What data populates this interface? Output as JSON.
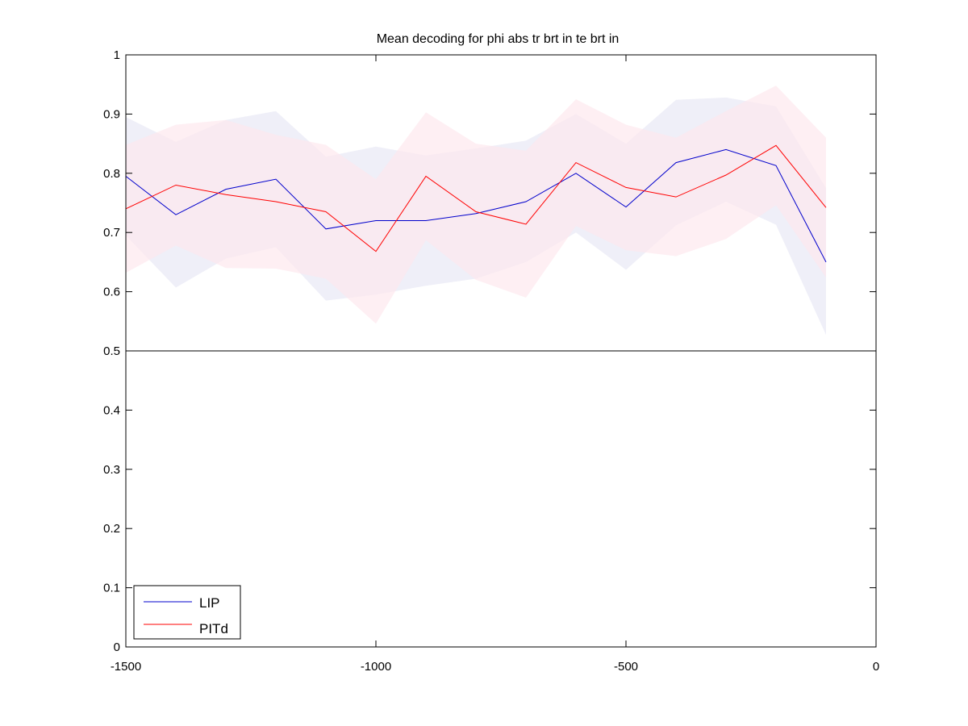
{
  "chart_data": {
    "type": "line",
    "title": "Mean decoding for phi abs tr brt in te brt in",
    "xlabel": "",
    "ylabel": "",
    "xlim": [
      -1500,
      0
    ],
    "ylim": [
      0,
      1
    ],
    "xticks": [
      -1500,
      -1000,
      -500,
      0
    ],
    "yticks": [
      0,
      0.1,
      0.2,
      0.3,
      0.4,
      0.5,
      0.6,
      0.7,
      0.8,
      0.9,
      1
    ],
    "grid": false,
    "legend_position": "bottom-left",
    "reference_line": {
      "y": 0.5,
      "color": "#000000"
    },
    "x": [
      -1500,
      -1400,
      -1300,
      -1200,
      -1100,
      -1000,
      -900,
      -800,
      -700,
      -600,
      -500,
      -400,
      -300,
      -200,
      -100
    ],
    "series": [
      {
        "name": "LIP",
        "color": "#0000cc",
        "band_color": "#e6e6f5",
        "values": [
          0.795,
          0.73,
          0.773,
          0.79,
          0.706,
          0.72,
          0.72,
          0.732,
          0.752,
          0.8,
          0.743,
          0.818,
          0.84,
          0.813,
          0.65
        ],
        "upper": [
          0.895,
          0.853,
          0.89,
          0.905,
          0.828,
          0.845,
          0.83,
          0.842,
          0.855,
          0.9,
          0.85,
          0.924,
          0.928,
          0.913,
          0.775
        ],
        "lower": [
          0.695,
          0.607,
          0.656,
          0.675,
          0.585,
          0.595,
          0.61,
          0.622,
          0.65,
          0.7,
          0.637,
          0.712,
          0.752,
          0.713,
          0.527
        ]
      },
      {
        "name": "PITd",
        "color": "#ff0000",
        "band_color": "#fde6ec",
        "values": [
          0.74,
          0.78,
          0.764,
          0.752,
          0.735,
          0.668,
          0.795,
          0.735,
          0.714,
          0.818,
          0.776,
          0.76,
          0.797,
          0.847,
          0.742
        ],
        "upper": [
          0.848,
          0.882,
          0.89,
          0.865,
          0.848,
          0.79,
          0.903,
          0.85,
          0.838,
          0.925,
          0.882,
          0.86,
          0.905,
          0.948,
          0.86
        ],
        "lower": [
          0.632,
          0.678,
          0.64,
          0.639,
          0.622,
          0.546,
          0.687,
          0.62,
          0.59,
          0.711,
          0.67,
          0.66,
          0.689,
          0.746,
          0.624
        ]
      }
    ]
  }
}
